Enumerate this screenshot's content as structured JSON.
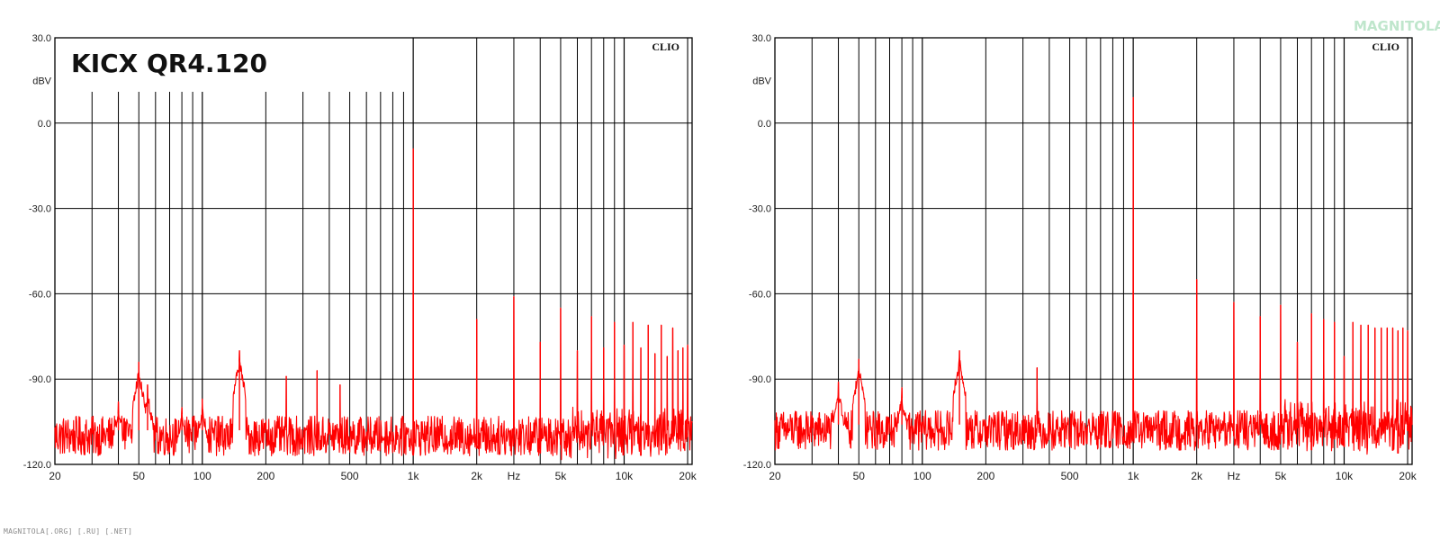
{
  "watermark_text": "MAGNITOLA[.ORG] [.RU] [.NET]",
  "logo_text": "MAGNITOLA",
  "chart_data": [
    {
      "type": "line",
      "title": "KICX QR4.120",
      "brand": "CLIO",
      "ylabel": "dBV",
      "xlabel": "Hz",
      "x_scale": "log",
      "xlim": [
        20,
        21000
      ],
      "ylim": [
        -120,
        30
      ],
      "grid": true,
      "y_ticks": [
        30,
        0,
        -30,
        -60,
        -90,
        -120
      ],
      "y_tick_labels": [
        "30.0",
        "0.0",
        "-30.0",
        "-60.0",
        "-90.0",
        "-120.0"
      ],
      "x_tick_labels": [
        {
          "f": 20,
          "label": "20"
        },
        {
          "f": 50,
          "label": "50"
        },
        {
          "f": 100,
          "label": "100"
        },
        {
          "f": 200,
          "label": "200"
        },
        {
          "f": 500,
          "label": "500"
        },
        {
          "f": 1000,
          "label": "1k"
        },
        {
          "f": 2000,
          "label": "2k"
        },
        {
          "f": 3000,
          "label": "Hz"
        },
        {
          "f": 5000,
          "label": "5k"
        },
        {
          "f": 10000,
          "label": "10k"
        },
        {
          "f": 20000,
          "label": "20k"
        }
      ],
      "series": [
        {
          "color": "#ff0000",
          "noise_floor_db": -110,
          "peaks": [
            {
              "f": 40,
              "db": -98
            },
            {
              "f": 50,
              "db": -84
            },
            {
              "f": 55,
              "db": -92
            },
            {
              "f": 80,
              "db": -100
            },
            {
              "f": 100,
              "db": -97
            },
            {
              "f": 150,
              "db": -80
            },
            {
              "f": 250,
              "db": -89
            },
            {
              "f": 350,
              "db": -87
            },
            {
              "f": 450,
              "db": -92
            },
            {
              "f": 1000,
              "db": -9
            },
            {
              "f": 2000,
              "db": -69
            },
            {
              "f": 3000,
              "db": -61
            },
            {
              "f": 4000,
              "db": -77
            },
            {
              "f": 5000,
              "db": -65
            },
            {
              "f": 6000,
              "db": -80
            },
            {
              "f": 7000,
              "db": -68
            },
            {
              "f": 8000,
              "db": -79
            },
            {
              "f": 9000,
              "db": -70
            },
            {
              "f": 10000,
              "db": -78
            },
            {
              "f": 11000,
              "db": -70
            },
            {
              "f": 12000,
              "db": -79
            },
            {
              "f": 13000,
              "db": -71
            },
            {
              "f": 14000,
              "db": -81
            },
            {
              "f": 15000,
              "db": -71
            },
            {
              "f": 16000,
              "db": -82
            },
            {
              "f": 17000,
              "db": -72
            },
            {
              "f": 18000,
              "db": -80
            },
            {
              "f": 19000,
              "db": -79
            },
            {
              "f": 20000,
              "db": -78
            }
          ]
        }
      ]
    },
    {
      "type": "line",
      "title": "",
      "brand": "CLIO",
      "ylabel": "dBV",
      "xlabel": "Hz",
      "x_scale": "log",
      "xlim": [
        20,
        21000
      ],
      "ylim": [
        -120,
        30
      ],
      "grid": true,
      "y_ticks": [
        30,
        0,
        -30,
        -60,
        -90,
        -120
      ],
      "y_tick_labels": [
        "30.0",
        "0.0",
        "-30.0",
        "-60.0",
        "-90.0",
        "-120.0"
      ],
      "x_tick_labels": [
        {
          "f": 20,
          "label": "20"
        },
        {
          "f": 50,
          "label": "50"
        },
        {
          "f": 100,
          "label": "100"
        },
        {
          "f": 200,
          "label": "200"
        },
        {
          "f": 500,
          "label": "500"
        },
        {
          "f": 1000,
          "label": "1k"
        },
        {
          "f": 2000,
          "label": "2k"
        },
        {
          "f": 3000,
          "label": "Hz"
        },
        {
          "f": 5000,
          "label": "5k"
        },
        {
          "f": 10000,
          "label": "10k"
        },
        {
          "f": 20000,
          "label": "20k"
        }
      ],
      "series": [
        {
          "color": "#ff0000",
          "noise_floor_db": -108,
          "peaks": [
            {
              "f": 40,
              "db": -91
            },
            {
              "f": 50,
              "db": -83
            },
            {
              "f": 80,
              "db": -93
            },
            {
              "f": 150,
              "db": -80
            },
            {
              "f": 350,
              "db": -86
            },
            {
              "f": 1000,
              "db": 9
            },
            {
              "f": 2000,
              "db": -55
            },
            {
              "f": 3000,
              "db": -63
            },
            {
              "f": 4000,
              "db": -68
            },
            {
              "f": 5000,
              "db": -64
            },
            {
              "f": 6000,
              "db": -77
            },
            {
              "f": 7000,
              "db": -67
            },
            {
              "f": 8000,
              "db": -69
            },
            {
              "f": 9000,
              "db": -70
            },
            {
              "f": 10000,
              "db": -82
            },
            {
              "f": 11000,
              "db": -70
            },
            {
              "f": 12000,
              "db": -71
            },
            {
              "f": 13000,
              "db": -71
            },
            {
              "f": 14000,
              "db": -72
            },
            {
              "f": 15000,
              "db": -72
            },
            {
              "f": 16000,
              "db": -72
            },
            {
              "f": 17000,
              "db": -72
            },
            {
              "f": 18000,
              "db": -73
            },
            {
              "f": 19000,
              "db": -72
            },
            {
              "f": 20000,
              "db": -73
            }
          ]
        }
      ]
    }
  ]
}
